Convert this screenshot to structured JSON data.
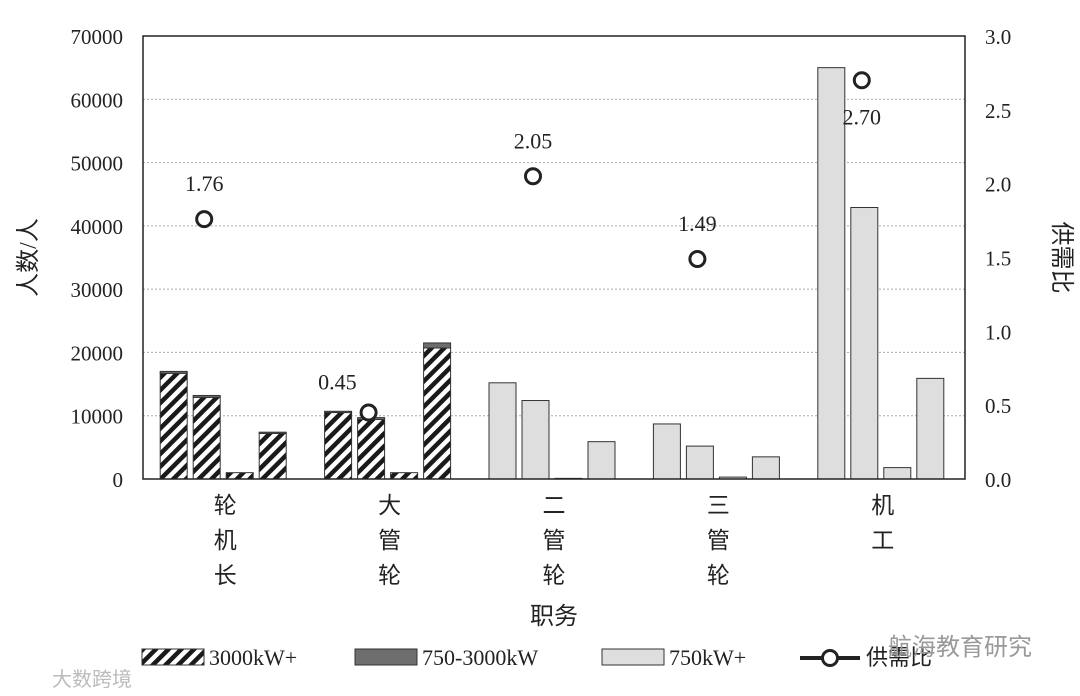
{
  "chart_data": {
    "type": "bar",
    "categories": [
      "轮\n机\n长",
      "大\n管\n轮",
      "二\n管\n轮",
      "三\n管\n轮",
      "机\n工"
    ],
    "xlabel": "职务",
    "ylabel": "人数/人",
    "ylabel_right": "供需比",
    "ylim": [
      0,
      70000
    ],
    "ylim_right": [
      0,
      3.0
    ],
    "y_ticks": [
      "0",
      "10000",
      "20000",
      "30000",
      "40000",
      "50000",
      "60000",
      "70000"
    ],
    "y_ticks_right": [
      "0.0",
      "0.5",
      "1.0",
      "1.5",
      "2.0",
      "2.5",
      "3.0"
    ],
    "grid": true,
    "legend_position": "bottom",
    "bars_per_category": 4,
    "series": [
      {
        "name": "3000kW+",
        "pattern": "hatch",
        "color": "#222222",
        "bars": [
          [
            16700,
            12900,
            1000,
            7200
          ],
          [
            10500,
            9400,
            1000,
            20700
          ],
          [
            0,
            0,
            0,
            0
          ],
          [
            0,
            0,
            0,
            0
          ],
          [
            0,
            0,
            0,
            0
          ]
        ]
      },
      {
        "name": "750-3000kW",
        "pattern": "dark",
        "color": "#777777",
        "bars": [
          [
            300,
            300,
            0,
            200
          ],
          [
            200,
            300,
            0,
            800
          ],
          [
            0,
            0,
            0,
            0
          ],
          [
            0,
            0,
            0,
            0
          ],
          [
            0,
            0,
            0,
            0
          ]
        ]
      },
      {
        "name": "750kW+",
        "pattern": "light",
        "color": "#dddddd",
        "bars": [
          [
            0,
            0,
            0,
            0
          ],
          [
            0,
            0,
            0,
            0
          ],
          [
            15200,
            12400,
            100,
            5900
          ],
          [
            8700,
            5200,
            300,
            3500
          ],
          [
            65000,
            42900,
            1800,
            15900
          ]
        ]
      }
    ],
    "ratio": {
      "name": "供需比",
      "values": [
        1.76,
        0.45,
        2.05,
        1.49,
        2.7
      ],
      "labels": [
        "1.76",
        "0.45",
        "2.05",
        "1.49",
        "2.70"
      ],
      "label_side": [
        "above",
        "left",
        "above",
        "above",
        "below"
      ]
    }
  },
  "watermark": {
    "left": "大数跨境",
    "right": "航海教育研究"
  }
}
